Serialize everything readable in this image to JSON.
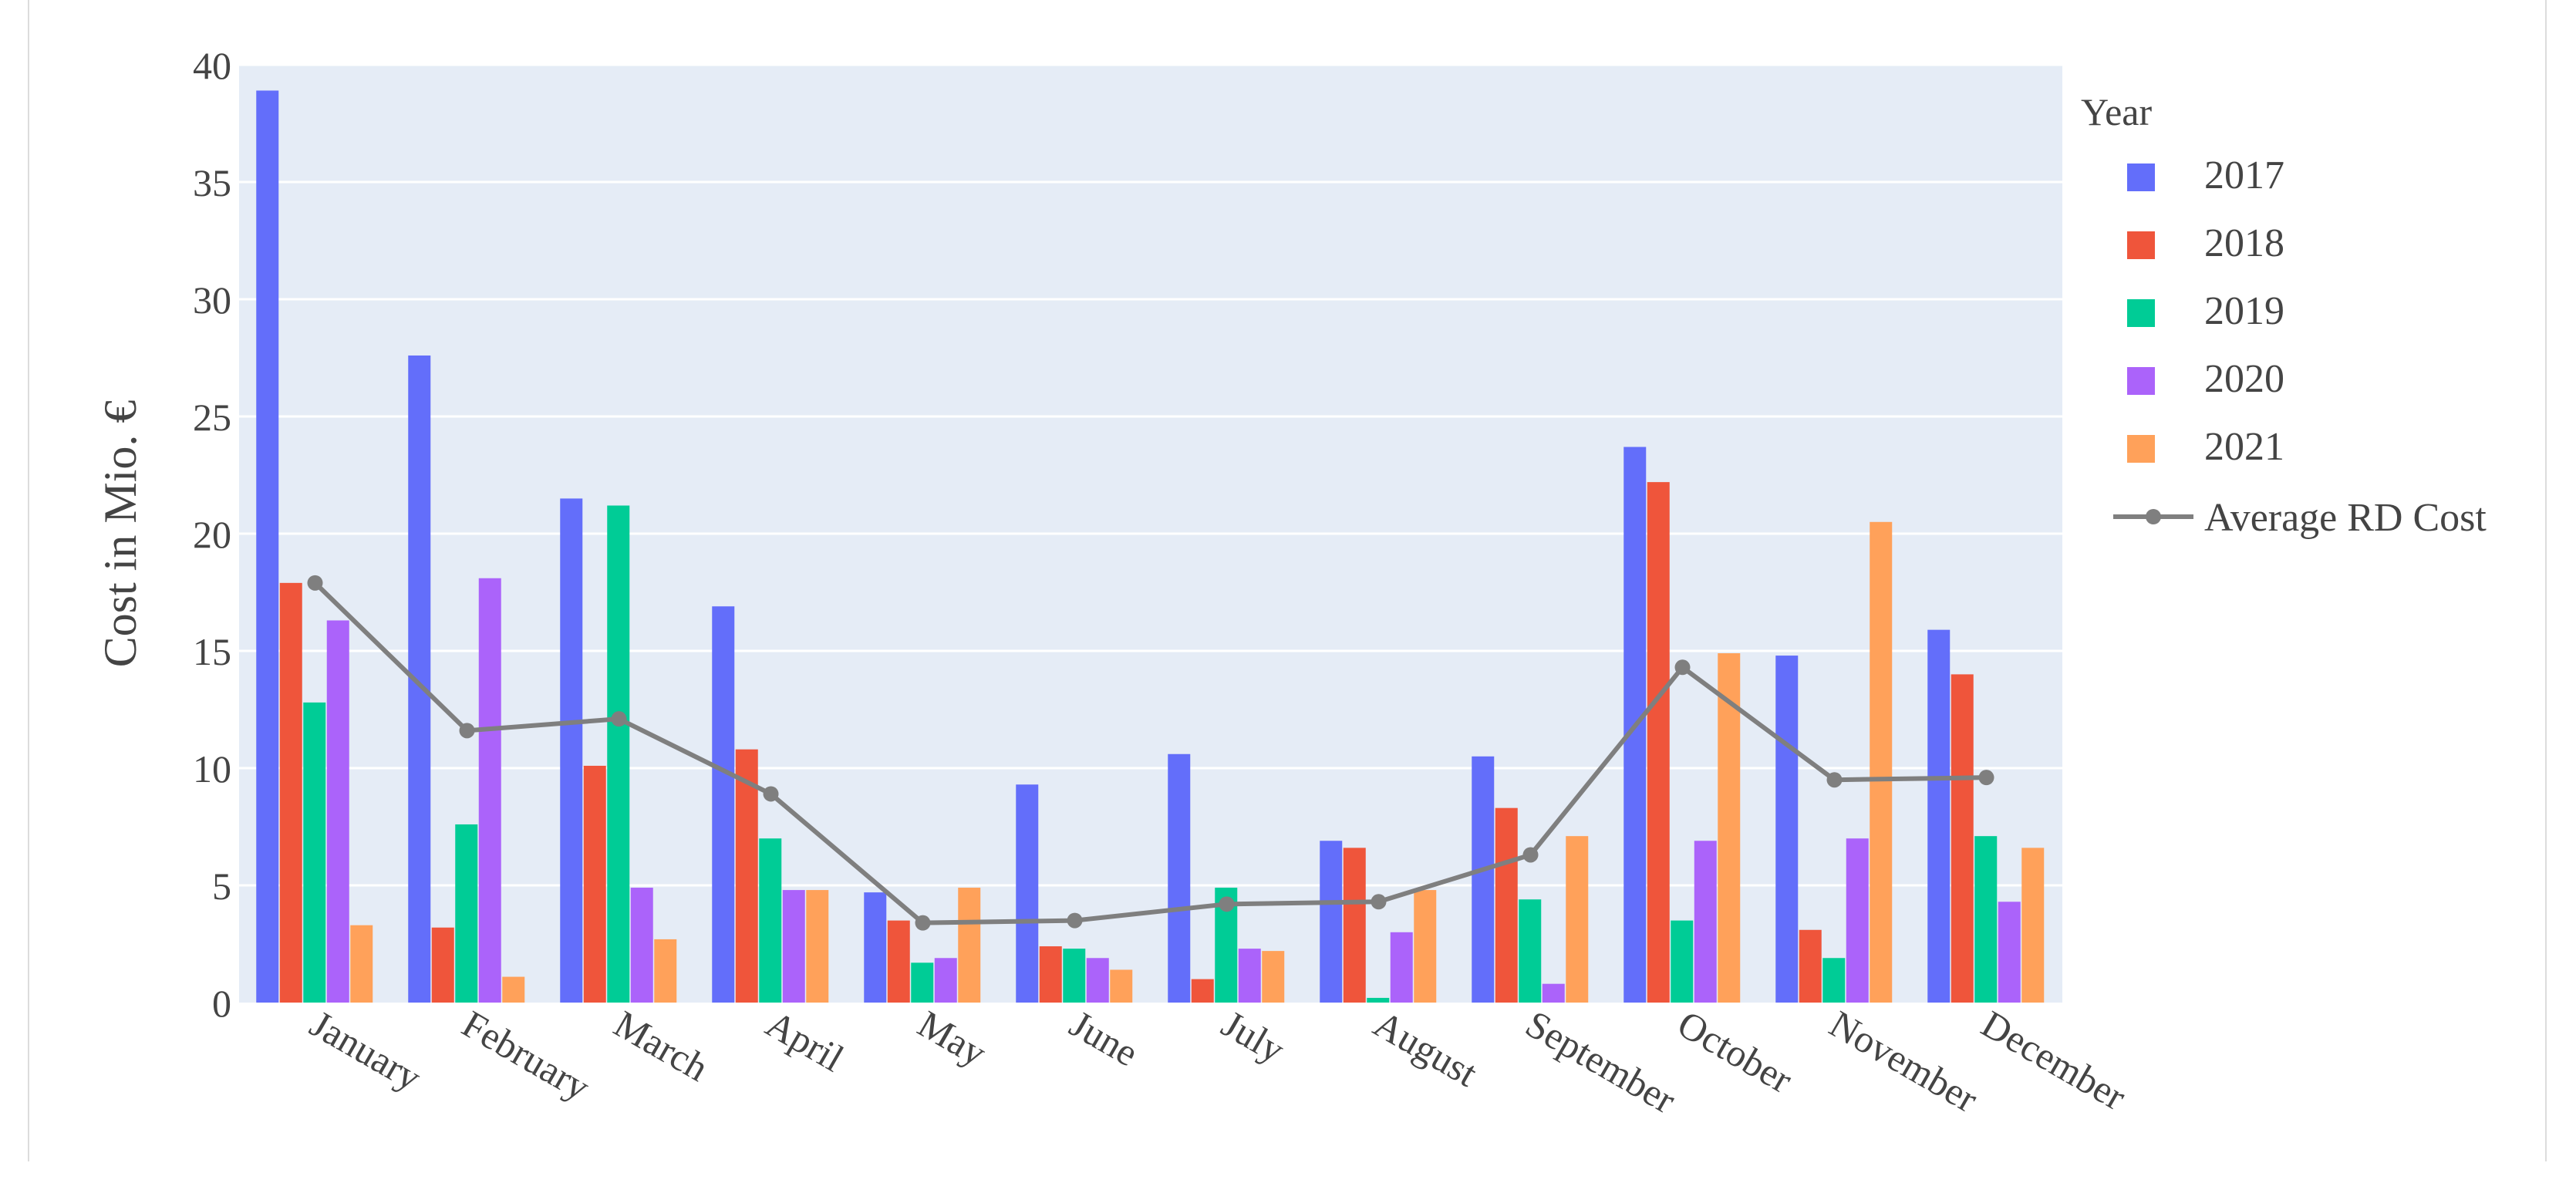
{
  "chart_data": {
    "type": "bar",
    "ylabel": "Cost in Mio. €",
    "ylim": [
      0,
      40
    ],
    "yticks": [
      0,
      5,
      10,
      15,
      20,
      25,
      30,
      35,
      40
    ],
    "categories": [
      "January",
      "February",
      "March",
      "April",
      "May",
      "June",
      "July",
      "August",
      "September",
      "October",
      "November",
      "December"
    ],
    "legend_title": "Year",
    "legend_position": "right",
    "grid": true,
    "series": [
      {
        "name": "2017",
        "color": "#636efa",
        "values": [
          38.9,
          27.6,
          21.5,
          16.9,
          4.7,
          9.3,
          10.6,
          6.9,
          10.5,
          23.7,
          14.8,
          15.9
        ]
      },
      {
        "name": "2018",
        "color": "#ef553b",
        "values": [
          17.9,
          3.2,
          10.1,
          10.8,
          3.5,
          2.4,
          1.0,
          6.6,
          8.3,
          22.2,
          3.1,
          14.0
        ]
      },
      {
        "name": "2019",
        "color": "#00cc96",
        "values": [
          12.8,
          7.6,
          21.2,
          7.0,
          1.7,
          2.3,
          4.9,
          0.2,
          4.4,
          3.5,
          1.9,
          7.1
        ]
      },
      {
        "name": "2020",
        "color": "#ab63fa",
        "values": [
          16.3,
          18.1,
          4.9,
          4.8,
          1.9,
          1.9,
          2.3,
          3.0,
          0.8,
          6.9,
          7.0,
          4.3
        ]
      },
      {
        "name": "2021",
        "color": "#ffa15a",
        "values": [
          3.3,
          1.1,
          2.7,
          4.8,
          4.9,
          1.4,
          2.2,
          4.8,
          7.1,
          14.9,
          20.5,
          6.6
        ]
      }
    ],
    "line_series": {
      "name": "Average RD Cost",
      "color": "#7f7f7f",
      "values": [
        17.9,
        11.6,
        12.1,
        8.9,
        3.4,
        3.5,
        4.2,
        4.3,
        6.3,
        14.3,
        9.5,
        9.6
      ]
    }
  }
}
